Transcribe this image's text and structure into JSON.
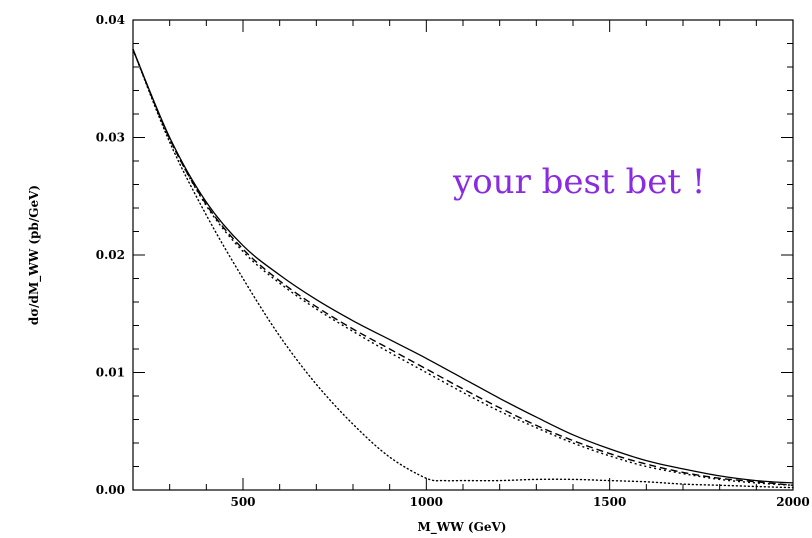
{
  "chart_data": {
    "type": "line",
    "xlabel": "M_WW (GeV)",
    "ylabel": "dσ/dM_WW (pb/GeV)",
    "annotation": "your best bet !",
    "xlim": [
      200,
      2000
    ],
    "ylim": [
      0,
      0.04
    ],
    "xticks": [
      500,
      1000,
      1500,
      2000
    ],
    "yticks": [
      0.0,
      0.01,
      0.02,
      0.03,
      0.04
    ],
    "ytick_labels": [
      "0.00",
      "0.01",
      "0.02",
      "0.03",
      "0.04"
    ],
    "series": [
      {
        "style": "solid",
        "x": [
          200,
          300,
          400,
          500,
          600,
          700,
          800,
          900,
          1000,
          1100,
          1200,
          1300,
          1400,
          1500,
          1600,
          1700,
          1800,
          1900,
          2000
        ],
        "y": [
          0.0375,
          0.03,
          0.0245,
          0.0208,
          0.0183,
          0.0162,
          0.0144,
          0.0128,
          0.0112,
          0.0095,
          0.0078,
          0.0062,
          0.0047,
          0.0035,
          0.0025,
          0.0018,
          0.0012,
          0.0008,
          0.0006
        ]
      },
      {
        "style": "dashed",
        "x": [
          200,
          300,
          400,
          500,
          600,
          700,
          800,
          900,
          1000,
          1100,
          1200,
          1300,
          1400,
          1500,
          1600,
          1700,
          1800,
          1900,
          2000
        ],
        "y": [
          0.0375,
          0.0299,
          0.0243,
          0.0205,
          0.0178,
          0.0156,
          0.0137,
          0.012,
          0.0103,
          0.0086,
          0.007,
          0.0055,
          0.0042,
          0.0031,
          0.0022,
          0.0015,
          0.001,
          0.0007,
          0.0004
        ]
      },
      {
        "style": "dotted",
        "x": [
          200,
          300,
          400,
          500,
          600,
          700,
          800,
          900,
          1000,
          1100,
          1200,
          1300,
          1400,
          1500,
          1600,
          1700,
          1800,
          1900,
          2000
        ],
        "y": [
          0.0375,
          0.0299,
          0.0242,
          0.0203,
          0.0176,
          0.0154,
          0.0135,
          0.0117,
          0.01,
          0.0083,
          0.0067,
          0.0053,
          0.004,
          0.0029,
          0.002,
          0.0014,
          0.0009,
          0.0006,
          0.0004
        ]
      },
      {
        "style": "sparse-dotted",
        "x": [
          200,
          300,
          400,
          500,
          600,
          700,
          800,
          900,
          1000,
          1050,
          1100,
          1200,
          1300,
          1400,
          1500,
          1600,
          1700,
          1800,
          1900,
          2000
        ],
        "y": [
          0.0375,
          0.0296,
          0.0234,
          0.018,
          0.0131,
          0.009,
          0.0056,
          0.0028,
          0.001,
          0.0008,
          0.0008,
          0.0008,
          0.0009,
          0.0009,
          0.0008,
          0.0007,
          0.0005,
          0.0004,
          0.0003,
          0.0002
        ]
      }
    ]
  }
}
